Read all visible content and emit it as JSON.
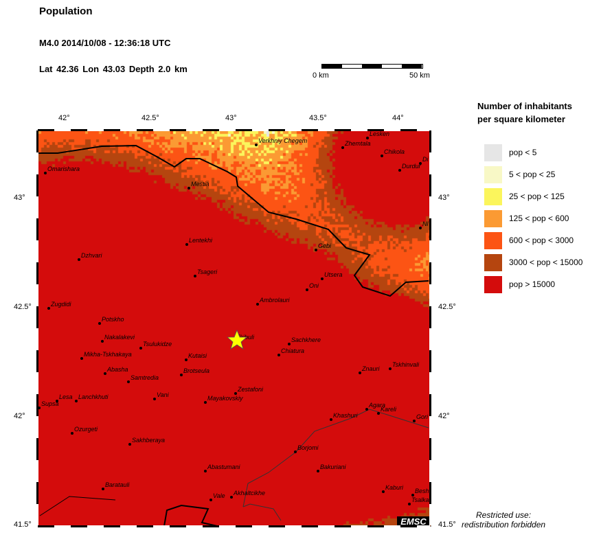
{
  "header": {
    "title": "Population",
    "event": "M4.0  2014/10/08 - 12:36:18 UTC",
    "location": "Lat 42.36    Lon  43.03     Depth  2.0 km"
  },
  "scale": {
    "start": "0 km",
    "end": "50 km"
  },
  "axes": {
    "lon_ticks": [
      "42°",
      "42.5°",
      "43°",
      "43.5°",
      "44°"
    ],
    "lat_ticks": [
      "43°",
      "42.5°",
      "42°",
      "41.5°"
    ]
  },
  "epicenter": {
    "lat": 42.36,
    "lon": 43.03,
    "icon": "star-icon",
    "color": "#ffff00"
  },
  "cities": [
    "Omarishara",
    "Mestia",
    "Verkhniy Chegem",
    "Zhemtala",
    "Lesken",
    "Chikola",
    "Di",
    "Durdur",
    "Nl",
    "Lentekhi",
    "Gebi",
    "Dzhvari",
    "Tsageri",
    "Utsera",
    "Oni",
    "Ambrolauri",
    "Zugdidi",
    "Potskho",
    "Nakalakevi",
    "Tsulukidze",
    "Tkibuli",
    "Sachkhere",
    "Chiatura",
    "Mikha-Tskhakaya",
    "Kutaisi",
    "Abasha",
    "Brotseula",
    "Tskhinvali",
    "Znauri",
    "Samtredia",
    "Zestafoni",
    "Vani",
    "Lanchkhuti",
    "Lesa",
    "Supsa",
    "Mayakovskiy",
    "Agara",
    "Kareli",
    "Khashuri",
    "Gori",
    "Ozurgeti",
    "Sakhberaya",
    "Borjomi",
    "Bakuriani",
    "Abastumani",
    "Baratauli",
    "Kaburi",
    "Besh",
    "Tsalka",
    "Vale",
    "Akhaltcikhe"
  ],
  "legend": {
    "title_line1": "Number of inhabitants",
    "title_line2": "per square kilometer",
    "items": [
      {
        "label": "pop < 5",
        "color": "#e6e6e6"
      },
      {
        "label": "5 < pop < 25",
        "color": "#f8f8c6"
      },
      {
        "label": "25 < pop < 125",
        "color": "#fbf55c"
      },
      {
        "label": "125 < pop < 600",
        "color": "#fb9a33"
      },
      {
        "label": "600 < pop < 3000",
        "color": "#fc5414"
      },
      {
        "label": "3000 < pop < 15000",
        "color": "#b5450f"
      },
      {
        "label": "pop > 15000",
        "color": "#d40c0c"
      }
    ]
  },
  "footer": {
    "restricted_line1": "Restricted use:",
    "restricted_line2": "redistribution forbidden",
    "logo": "EMSC"
  }
}
